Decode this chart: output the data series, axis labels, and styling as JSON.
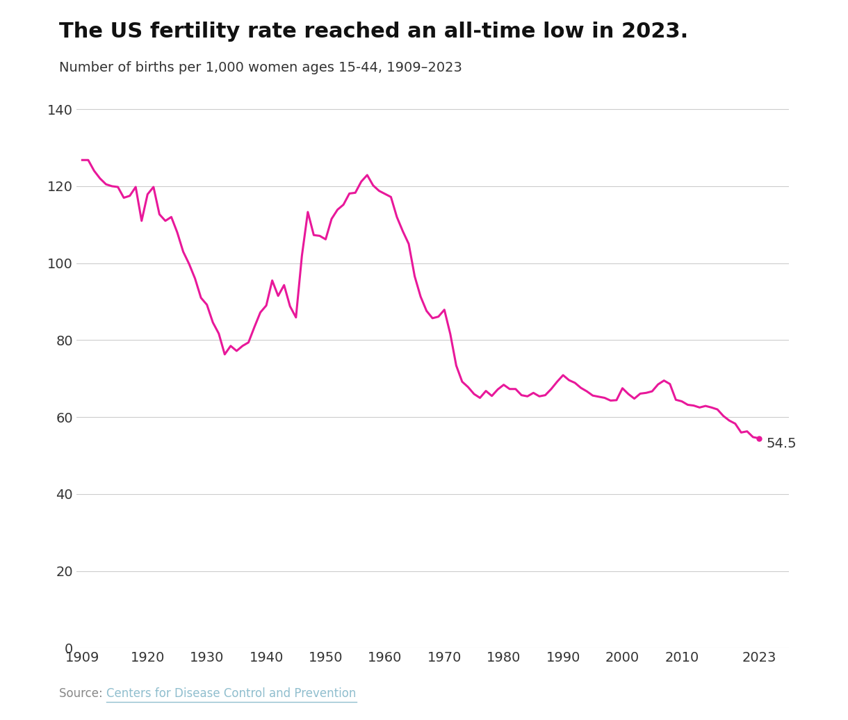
{
  "title": "The US fertility rate reached an all-time low in 2023.",
  "subtitle": "Number of births per 1,000 women ages 15-44, 1909–2023",
  "source_text": "Source: ",
  "source_link": "Centers for Disease Control and Prevention",
  "line_color": "#E8189A",
  "background_color": "#ffffff",
  "end_label": "54.5",
  "years": [
    1909,
    1910,
    1911,
    1912,
    1913,
    1914,
    1915,
    1916,
    1917,
    1918,
    1919,
    1920,
    1921,
    1922,
    1923,
    1924,
    1925,
    1926,
    1927,
    1928,
    1929,
    1930,
    1931,
    1932,
    1933,
    1934,
    1935,
    1936,
    1937,
    1938,
    1939,
    1940,
    1941,
    1942,
    1943,
    1944,
    1945,
    1946,
    1947,
    1948,
    1949,
    1950,
    1951,
    1952,
    1953,
    1954,
    1955,
    1956,
    1957,
    1958,
    1959,
    1960,
    1961,
    1962,
    1963,
    1964,
    1965,
    1966,
    1967,
    1968,
    1969,
    1970,
    1971,
    1972,
    1973,
    1974,
    1975,
    1976,
    1977,
    1978,
    1979,
    1980,
    1981,
    1982,
    1983,
    1984,
    1985,
    1986,
    1987,
    1988,
    1989,
    1990,
    1991,
    1992,
    1993,
    1994,
    1995,
    1996,
    1997,
    1998,
    1999,
    2000,
    2001,
    2002,
    2003,
    2004,
    2005,
    2006,
    2007,
    2008,
    2009,
    2010,
    2011,
    2012,
    2013,
    2014,
    2015,
    2016,
    2017,
    2018,
    2019,
    2020,
    2021,
    2022,
    2023
  ],
  "values": [
    126.8,
    126.8,
    124.0,
    122.0,
    120.5,
    120.0,
    119.8,
    117.0,
    117.5,
    119.8,
    111.0,
    117.9,
    119.8,
    112.7,
    111.0,
    112.0,
    108.0,
    103.0,
    99.8,
    96.0,
    91.0,
    89.2,
    84.6,
    81.7,
    76.3,
    78.5,
    77.2,
    78.5,
    79.4,
    83.4,
    87.2,
    89.0,
    95.5,
    91.5,
    94.3,
    88.8,
    85.9,
    101.9,
    113.3,
    107.3,
    107.1,
    106.2,
    111.5,
    113.9,
    115.2,
    118.1,
    118.3,
    121.2,
    122.9,
    120.2,
    118.8,
    118.0,
    117.2,
    112.0,
    108.3,
    105.0,
    96.6,
    91.3,
    87.6,
    85.7,
    86.1,
    87.9,
    81.6,
    73.4,
    69.2,
    67.8,
    66.0,
    65.0,
    66.8,
    65.5,
    67.2,
    68.4,
    67.3,
    67.3,
    65.7,
    65.4,
    66.3,
    65.4,
    65.7,
    67.3,
    69.2,
    70.9,
    69.6,
    68.9,
    67.6,
    66.7,
    65.6,
    65.3,
    65.0,
    64.3,
    64.4,
    67.5,
    66.0,
    64.8,
    66.1,
    66.3,
    66.7,
    68.5,
    69.5,
    68.6,
    64.5,
    64.1,
    63.2,
    63.0,
    62.5,
    62.9,
    62.5,
    62.0,
    60.3,
    59.1,
    58.3,
    56.0,
    56.3,
    54.8,
    54.5
  ],
  "xlim": [
    1909,
    2023
  ],
  "ylim": [
    0,
    145
  ],
  "yticks": [
    0,
    20,
    40,
    60,
    80,
    100,
    120,
    140
  ],
  "xticks": [
    1909,
    1920,
    1930,
    1940,
    1950,
    1960,
    1970,
    1980,
    1990,
    2000,
    2010,
    2023
  ],
  "grid_color": "#cccccc",
  "title_fontsize": 22,
  "subtitle_fontsize": 14,
  "tick_fontsize": 14,
  "source_fontsize": 12
}
